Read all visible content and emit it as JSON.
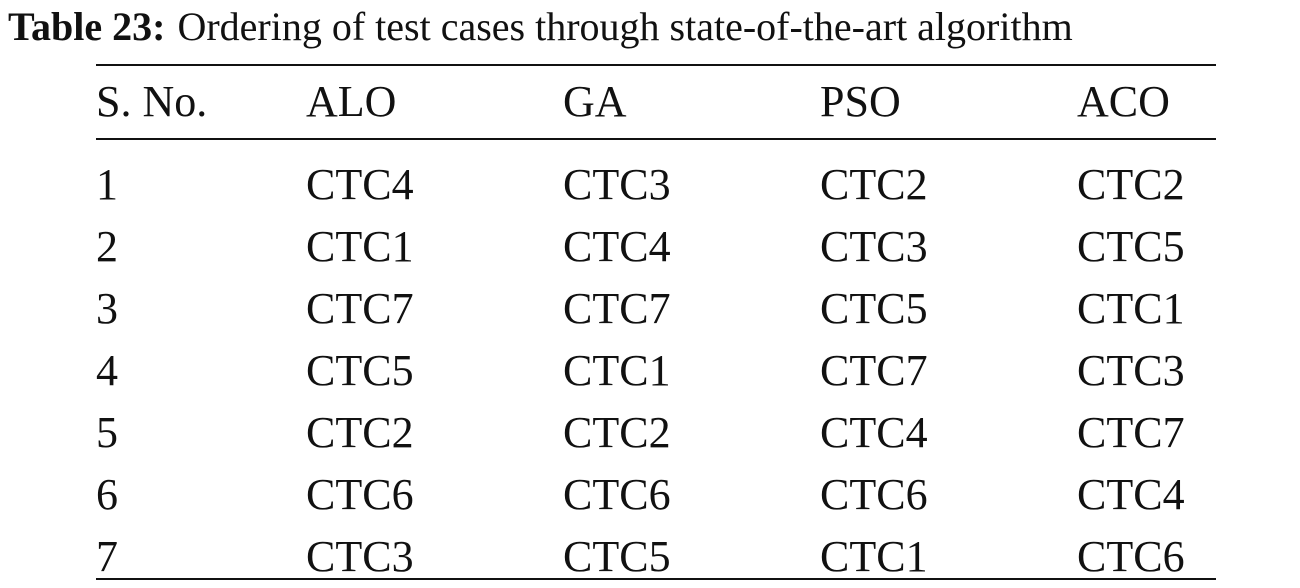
{
  "caption": {
    "label": "Table 23:",
    "text": "Ordering of test cases through state-of-the-art algorithm"
  },
  "table": {
    "headers": [
      "S. No.",
      "ALO",
      "GA",
      "PSO",
      "ACO"
    ],
    "rows": [
      [
        "1",
        "CTC4",
        "CTC3",
        "CTC2",
        "CTC2"
      ],
      [
        "2",
        "CTC1",
        "CTC4",
        "CTC3",
        "CTC5"
      ],
      [
        "3",
        "CTC7",
        "CTC7",
        "CTC5",
        "CTC1"
      ],
      [
        "4",
        "CTC5",
        "CTC1",
        "CTC7",
        "CTC3"
      ],
      [
        "5",
        "CTC2",
        "CTC2",
        "CTC4",
        "CTC7"
      ],
      [
        "6",
        "CTC6",
        "CTC6",
        "CTC6",
        "CTC4"
      ],
      [
        "7",
        "CTC3",
        "CTC5",
        "CTC1",
        "CTC6"
      ]
    ]
  }
}
